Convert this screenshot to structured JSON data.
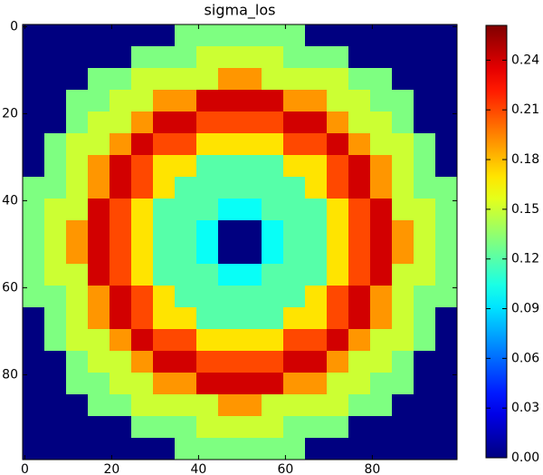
{
  "chart_data": {
    "type": "heatmap",
    "title": "sigma_los",
    "z": [
      [
        0,
        0,
        0,
        0,
        0,
        0,
        0,
        0.13,
        0.13,
        0.13,
        0.13,
        0.13,
        0.13,
        0,
        0,
        0,
        0,
        0,
        0,
        0
      ],
      [
        0,
        0,
        0,
        0,
        0,
        0.13,
        0.13,
        0.13,
        0.15,
        0.15,
        0.15,
        0.15,
        0.13,
        0.13,
        0.13,
        0,
        0,
        0,
        0,
        0
      ],
      [
        0,
        0,
        0,
        0.13,
        0.13,
        0.15,
        0.15,
        0.15,
        0.15,
        0.19,
        0.19,
        0.15,
        0.15,
        0.15,
        0.15,
        0.13,
        0.13,
        0,
        0,
        0
      ],
      [
        0,
        0,
        0.13,
        0.13,
        0.15,
        0.15,
        0.19,
        0.19,
        0.24,
        0.24,
        0.24,
        0.24,
        0.19,
        0.19,
        0.15,
        0.15,
        0.13,
        0.13,
        0,
        0
      ],
      [
        0,
        0,
        0.13,
        0.15,
        0.15,
        0.19,
        0.24,
        0.24,
        0.21,
        0.21,
        0.21,
        0.21,
        0.24,
        0.24,
        0.19,
        0.15,
        0.15,
        0.13,
        0,
        0
      ],
      [
        0,
        0.13,
        0.15,
        0.15,
        0.19,
        0.24,
        0.21,
        0.21,
        0.17,
        0.17,
        0.17,
        0.17,
        0.21,
        0.21,
        0.24,
        0.19,
        0.15,
        0.15,
        0.13,
        0
      ],
      [
        0,
        0.13,
        0.15,
        0.19,
        0.24,
        0.21,
        0.17,
        0.17,
        0.12,
        0.12,
        0.12,
        0.12,
        0.17,
        0.17,
        0.21,
        0.24,
        0.19,
        0.15,
        0.13,
        0
      ],
      [
        0.13,
        0.13,
        0.15,
        0.19,
        0.24,
        0.21,
        0.17,
        0.12,
        0.12,
        0.12,
        0.12,
        0.12,
        0.12,
        0.17,
        0.21,
        0.24,
        0.19,
        0.15,
        0.13,
        0.13
      ],
      [
        0.13,
        0.15,
        0.15,
        0.24,
        0.21,
        0.17,
        0.12,
        0.12,
        0.12,
        0.1,
        0.1,
        0.12,
        0.12,
        0.12,
        0.17,
        0.21,
        0.24,
        0.15,
        0.15,
        0.13
      ],
      [
        0.13,
        0.15,
        0.19,
        0.24,
        0.21,
        0.17,
        0.12,
        0.12,
        0.1,
        0,
        0,
        0.1,
        0.12,
        0.12,
        0.17,
        0.21,
        0.24,
        0.19,
        0.15,
        0.13
      ],
      [
        0.13,
        0.15,
        0.19,
        0.24,
        0.21,
        0.17,
        0.12,
        0.12,
        0.1,
        0,
        0,
        0.1,
        0.12,
        0.12,
        0.17,
        0.21,
        0.24,
        0.19,
        0.15,
        0.13
      ],
      [
        0.13,
        0.15,
        0.15,
        0.24,
        0.21,
        0.17,
        0.12,
        0.12,
        0.12,
        0.1,
        0.1,
        0.12,
        0.12,
        0.12,
        0.17,
        0.21,
        0.24,
        0.15,
        0.15,
        0.13
      ],
      [
        0.13,
        0.13,
        0.15,
        0.19,
        0.24,
        0.21,
        0.17,
        0.12,
        0.12,
        0.12,
        0.12,
        0.12,
        0.12,
        0.17,
        0.21,
        0.24,
        0.19,
        0.15,
        0.13,
        0.13
      ],
      [
        0,
        0.13,
        0.15,
        0.19,
        0.24,
        0.21,
        0.17,
        0.17,
        0.12,
        0.12,
        0.12,
        0.12,
        0.17,
        0.17,
        0.21,
        0.24,
        0.19,
        0.15,
        0.13,
        0
      ],
      [
        0,
        0.13,
        0.15,
        0.15,
        0.19,
        0.24,
        0.21,
        0.21,
        0.17,
        0.17,
        0.17,
        0.17,
        0.21,
        0.21,
        0.24,
        0.19,
        0.15,
        0.15,
        0.13,
        0
      ],
      [
        0,
        0,
        0.13,
        0.15,
        0.15,
        0.19,
        0.24,
        0.24,
        0.21,
        0.21,
        0.21,
        0.21,
        0.24,
        0.24,
        0.19,
        0.15,
        0.15,
        0.13,
        0,
        0
      ],
      [
        0,
        0,
        0.13,
        0.13,
        0.15,
        0.15,
        0.19,
        0.19,
        0.24,
        0.24,
        0.24,
        0.24,
        0.19,
        0.19,
        0.15,
        0.15,
        0.13,
        0.13,
        0,
        0
      ],
      [
        0,
        0,
        0,
        0.13,
        0.13,
        0.15,
        0.15,
        0.15,
        0.15,
        0.19,
        0.19,
        0.15,
        0.15,
        0.15,
        0.15,
        0.13,
        0.13,
        0,
        0,
        0
      ],
      [
        0,
        0,
        0,
        0,
        0,
        0.13,
        0.13,
        0.13,
        0.15,
        0.15,
        0.15,
        0.15,
        0.13,
        0.13,
        0.13,
        0,
        0,
        0,
        0,
        0
      ],
      [
        0,
        0,
        0,
        0,
        0,
        0,
        0,
        0.13,
        0.13,
        0.13,
        0.13,
        0.13,
        0.13,
        0,
        0,
        0,
        0,
        0,
        0,
        0
      ]
    ],
    "xlim": [
      -0.5,
      99.5
    ],
    "ylim": [
      99.5,
      -0.5
    ],
    "xticks": [
      0,
      20,
      40,
      60,
      80
    ],
    "yticks": [
      0,
      20,
      40,
      60,
      80
    ],
    "colormap": "jet",
    "clim": [
      0,
      0.261
    ],
    "cticks": [
      {
        "value": 0,
        "label": "0.00"
      },
      {
        "value": 0.03,
        "label": "0.03"
      },
      {
        "value": 0.06,
        "label": "0.06"
      },
      {
        "value": 0.09,
        "label": "0.09"
      },
      {
        "value": 0.12,
        "label": "0.12"
      },
      {
        "value": 0.15,
        "label": "0.15"
      },
      {
        "value": 0.18,
        "label": "0.18"
      },
      {
        "value": 0.21,
        "label": "0.21"
      },
      {
        "value": 0.24,
        "label": "0.24"
      }
    ]
  }
}
